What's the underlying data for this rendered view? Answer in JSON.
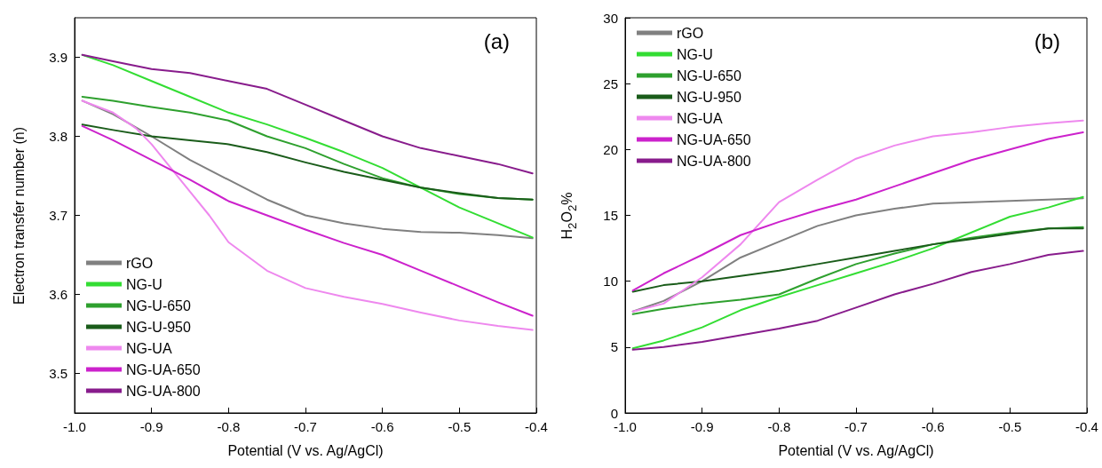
{
  "chart_data": [
    {
      "type": "line",
      "xlabel": "Potential (V vs. Ag/AgCl)",
      "ylabel": "Electron transfer number (n)",
      "annotations": [
        "(a)"
      ],
      "x": [
        -0.99,
        -0.95,
        -0.9,
        -0.85,
        -0.8,
        -0.75,
        -0.7,
        -0.65,
        -0.6,
        -0.55,
        -0.5,
        -0.45,
        -0.405
      ],
      "xlim": [
        -1.0,
        -0.4
      ],
      "xticks": [
        {
          "value": -1.0,
          "label": "-1.0"
        },
        -0.9,
        -0.8,
        -0.7,
        -0.6,
        -0.5,
        -0.4
      ],
      "ylim": [
        3.45,
        3.95
      ],
      "yticks": [
        3.5,
        3.6,
        3.7,
        3.8,
        3.9
      ],
      "grid": false,
      "legend": "bottom left",
      "marker": "none",
      "line_style": "solid",
      "series": [
        {
          "name": "rGO",
          "color": "#808080",
          "values": [
            3.845,
            3.828,
            3.8,
            3.77,
            3.745,
            3.72,
            3.7,
            3.69,
            3.683,
            3.679,
            3.678,
            3.675,
            3.671
          ]
        },
        {
          "name": "NG-U",
          "color": "#33dd33",
          "values": [
            3.903,
            3.89,
            3.87,
            3.85,
            3.83,
            3.815,
            3.798,
            3.78,
            3.76,
            3.735,
            3.71,
            3.69,
            3.672
          ]
        },
        {
          "name": "NG-U-650",
          "color": "#2ea02e",
          "values": [
            3.85,
            3.845,
            3.837,
            3.83,
            3.82,
            3.8,
            3.785,
            3.765,
            3.747,
            3.735,
            3.727,
            3.722,
            3.72
          ]
        },
        {
          "name": "NG-U-950",
          "color": "#1a5c1a",
          "values": [
            3.815,
            3.808,
            3.8,
            3.795,
            3.79,
            3.78,
            3.767,
            3.755,
            3.745,
            3.735,
            3.728,
            3.722,
            3.72
          ]
        },
        {
          "name": "NG-UA",
          "color": "#ee88ee",
          "x": [
            -0.99,
            -0.95,
            -0.92,
            -0.9,
            -0.875,
            -0.85,
            -0.825,
            -0.8,
            -0.75,
            -0.7,
            -0.65,
            -0.6,
            -0.55,
            -0.5,
            -0.45,
            -0.405
          ],
          "values": [
            3.845,
            3.83,
            3.81,
            3.79,
            3.76,
            3.73,
            3.7,
            3.666,
            3.63,
            3.608,
            3.597,
            3.588,
            3.577,
            3.567,
            3.56,
            3.555
          ]
        },
        {
          "name": "NG-UA-650",
          "color": "#cc22cc",
          "values": [
            3.813,
            3.795,
            3.77,
            3.745,
            3.718,
            3.7,
            3.682,
            3.665,
            3.65,
            3.63,
            3.61,
            3.59,
            3.573
          ]
        },
        {
          "name": "NG-UA-800",
          "color": "#881c8c",
          "values": [
            3.903,
            3.895,
            3.885,
            3.88,
            3.87,
            3.86,
            3.84,
            3.82,
            3.8,
            3.785,
            3.775,
            3.765,
            3.753
          ]
        }
      ]
    },
    {
      "type": "line",
      "xlabel": "Potential (V vs. Ag/AgCl)",
      "ylabel": "H$_{2}$O$_{2}$%",
      "annotations": [
        "(b)"
      ],
      "x": [
        -0.99,
        -0.95,
        -0.9,
        -0.85,
        -0.8,
        -0.75,
        -0.7,
        -0.65,
        -0.6,
        -0.55,
        -0.5,
        -0.45,
        -0.405
      ],
      "xlim": [
        -1.0,
        -0.4
      ],
      "xticks": [
        {
          "value": -1.0,
          "label": "-1.0"
        },
        -0.9,
        -0.8,
        -0.7,
        -0.6,
        -0.5,
        -0.4
      ],
      "ylim": [
        0,
        30
      ],
      "yticks": [
        0,
        5,
        10,
        15,
        20,
        25,
        30
      ],
      "grid": false,
      "legend": "top left",
      "marker": "none",
      "line_style": "solid",
      "series": [
        {
          "name": "rGO",
          "color": "#808080",
          "values": [
            7.7,
            8.5,
            10,
            11.8,
            13,
            14.2,
            15,
            15.5,
            15.9,
            16,
            16.1,
            16.2,
            16.3
          ]
        },
        {
          "name": "NG-U",
          "color": "#33dd33",
          "values": [
            4.9,
            5.5,
            6.5,
            7.8,
            8.8,
            9.7,
            10.6,
            11.5,
            12.5,
            13.7,
            14.9,
            15.6,
            16.4
          ]
        },
        {
          "name": "NG-U-650",
          "color": "#2ea02e",
          "values": [
            7.5,
            7.9,
            8.3,
            8.6,
            9.0,
            10.2,
            11.3,
            12.1,
            12.8,
            13.3,
            13.7,
            14,
            14.1
          ]
        },
        {
          "name": "NG-U-950",
          "color": "#1a5c1a",
          "values": [
            9.2,
            9.7,
            10.0,
            10.4,
            10.8,
            11.3,
            11.8,
            12.3,
            12.8,
            13.2,
            13.6,
            14,
            14.0
          ]
        },
        {
          "name": "NG-UA",
          "color": "#ee88ee",
          "values": [
            7.7,
            8.3,
            10.3,
            12.8,
            16,
            17.7,
            19.3,
            20.3,
            21,
            21.3,
            21.7,
            22.0,
            22.2
          ]
        },
        {
          "name": "NG-UA-650",
          "color": "#cc22cc",
          "values": [
            9.3,
            10.6,
            12,
            13.5,
            14.5,
            15.4,
            16.2,
            17.2,
            18.2,
            19.2,
            20.0,
            20.8,
            21.3
          ]
        },
        {
          "name": "NG-UA-800",
          "color": "#881c8c",
          "values": [
            4.8,
            5,
            5.4,
            5.9,
            6.4,
            7.0,
            8.0,
            9.0,
            9.8,
            10.7,
            11.3,
            12,
            12.3
          ]
        }
      ]
    }
  ]
}
